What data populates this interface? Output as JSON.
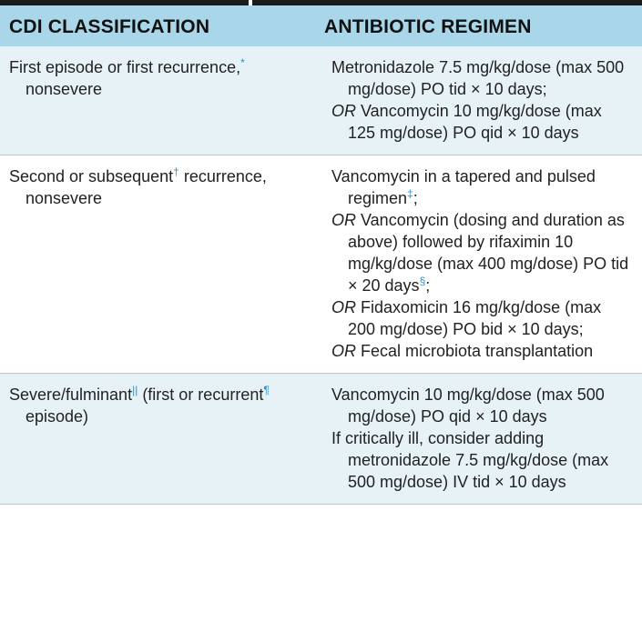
{
  "headers": {
    "classification": "CDI CLASSIFICATION",
    "regimen": "ANTIBIOTIC REGIMEN"
  },
  "rows": [
    {
      "classification": {
        "pre": "First episode or first recurrence,",
        "sup": "*",
        "post": " nonsevere"
      },
      "regimen": [
        {
          "or": "",
          "text": "Metronidazole 7.5 mg/kg/dose (max 500 mg/dose) PO tid × 10 days;",
          "sup": "",
          "tail": ""
        },
        {
          "or": "OR",
          "text": " Vancomycin 10 mg/kg/dose (max 125 mg/dose) PO qid × 10 days",
          "sup": "",
          "tail": ""
        }
      ]
    },
    {
      "classification": {
        "pre": "Second or subsequent",
        "sup": "†",
        "post": " recurrence, nonsevere"
      },
      "regimen": [
        {
          "or": "",
          "text": "Vancomycin in a tapered and pulsed regimen",
          "sup": "‡",
          "tail": ";"
        },
        {
          "or": "OR",
          "text": " Vancomycin (dosing and duration as above) followed by rifaximin 10 mg/kg/dose (max 400 mg/dose) PO tid × 20 days",
          "sup": "§",
          "tail": ";"
        },
        {
          "or": "OR",
          "text": " Fidaxomicin 16 mg/kg/dose (max 200 mg/dose) PO bid × 10 days;",
          "sup": "",
          "tail": ""
        },
        {
          "or": "OR",
          "text": " Fecal microbiota transplantation",
          "sup": "",
          "tail": ""
        }
      ]
    },
    {
      "classification": {
        "pre": "Severe/fulminant",
        "sup": "||",
        "post": " (first or recurrent",
        "sup2": "¶",
        "post2": " episode)"
      },
      "regimen": [
        {
          "or": "",
          "text": "Vancomycin 10 mg/kg/dose (max 500 mg/dose) PO qid × 10 days",
          "sup": "",
          "tail": ""
        },
        {
          "or": "",
          "text": "If critically ill, consider adding metronidazole 7.5 mg/kg/dose (max 500 mg/dose) IV tid × 10 days",
          "sup": "",
          "tail": ""
        }
      ]
    }
  ]
}
